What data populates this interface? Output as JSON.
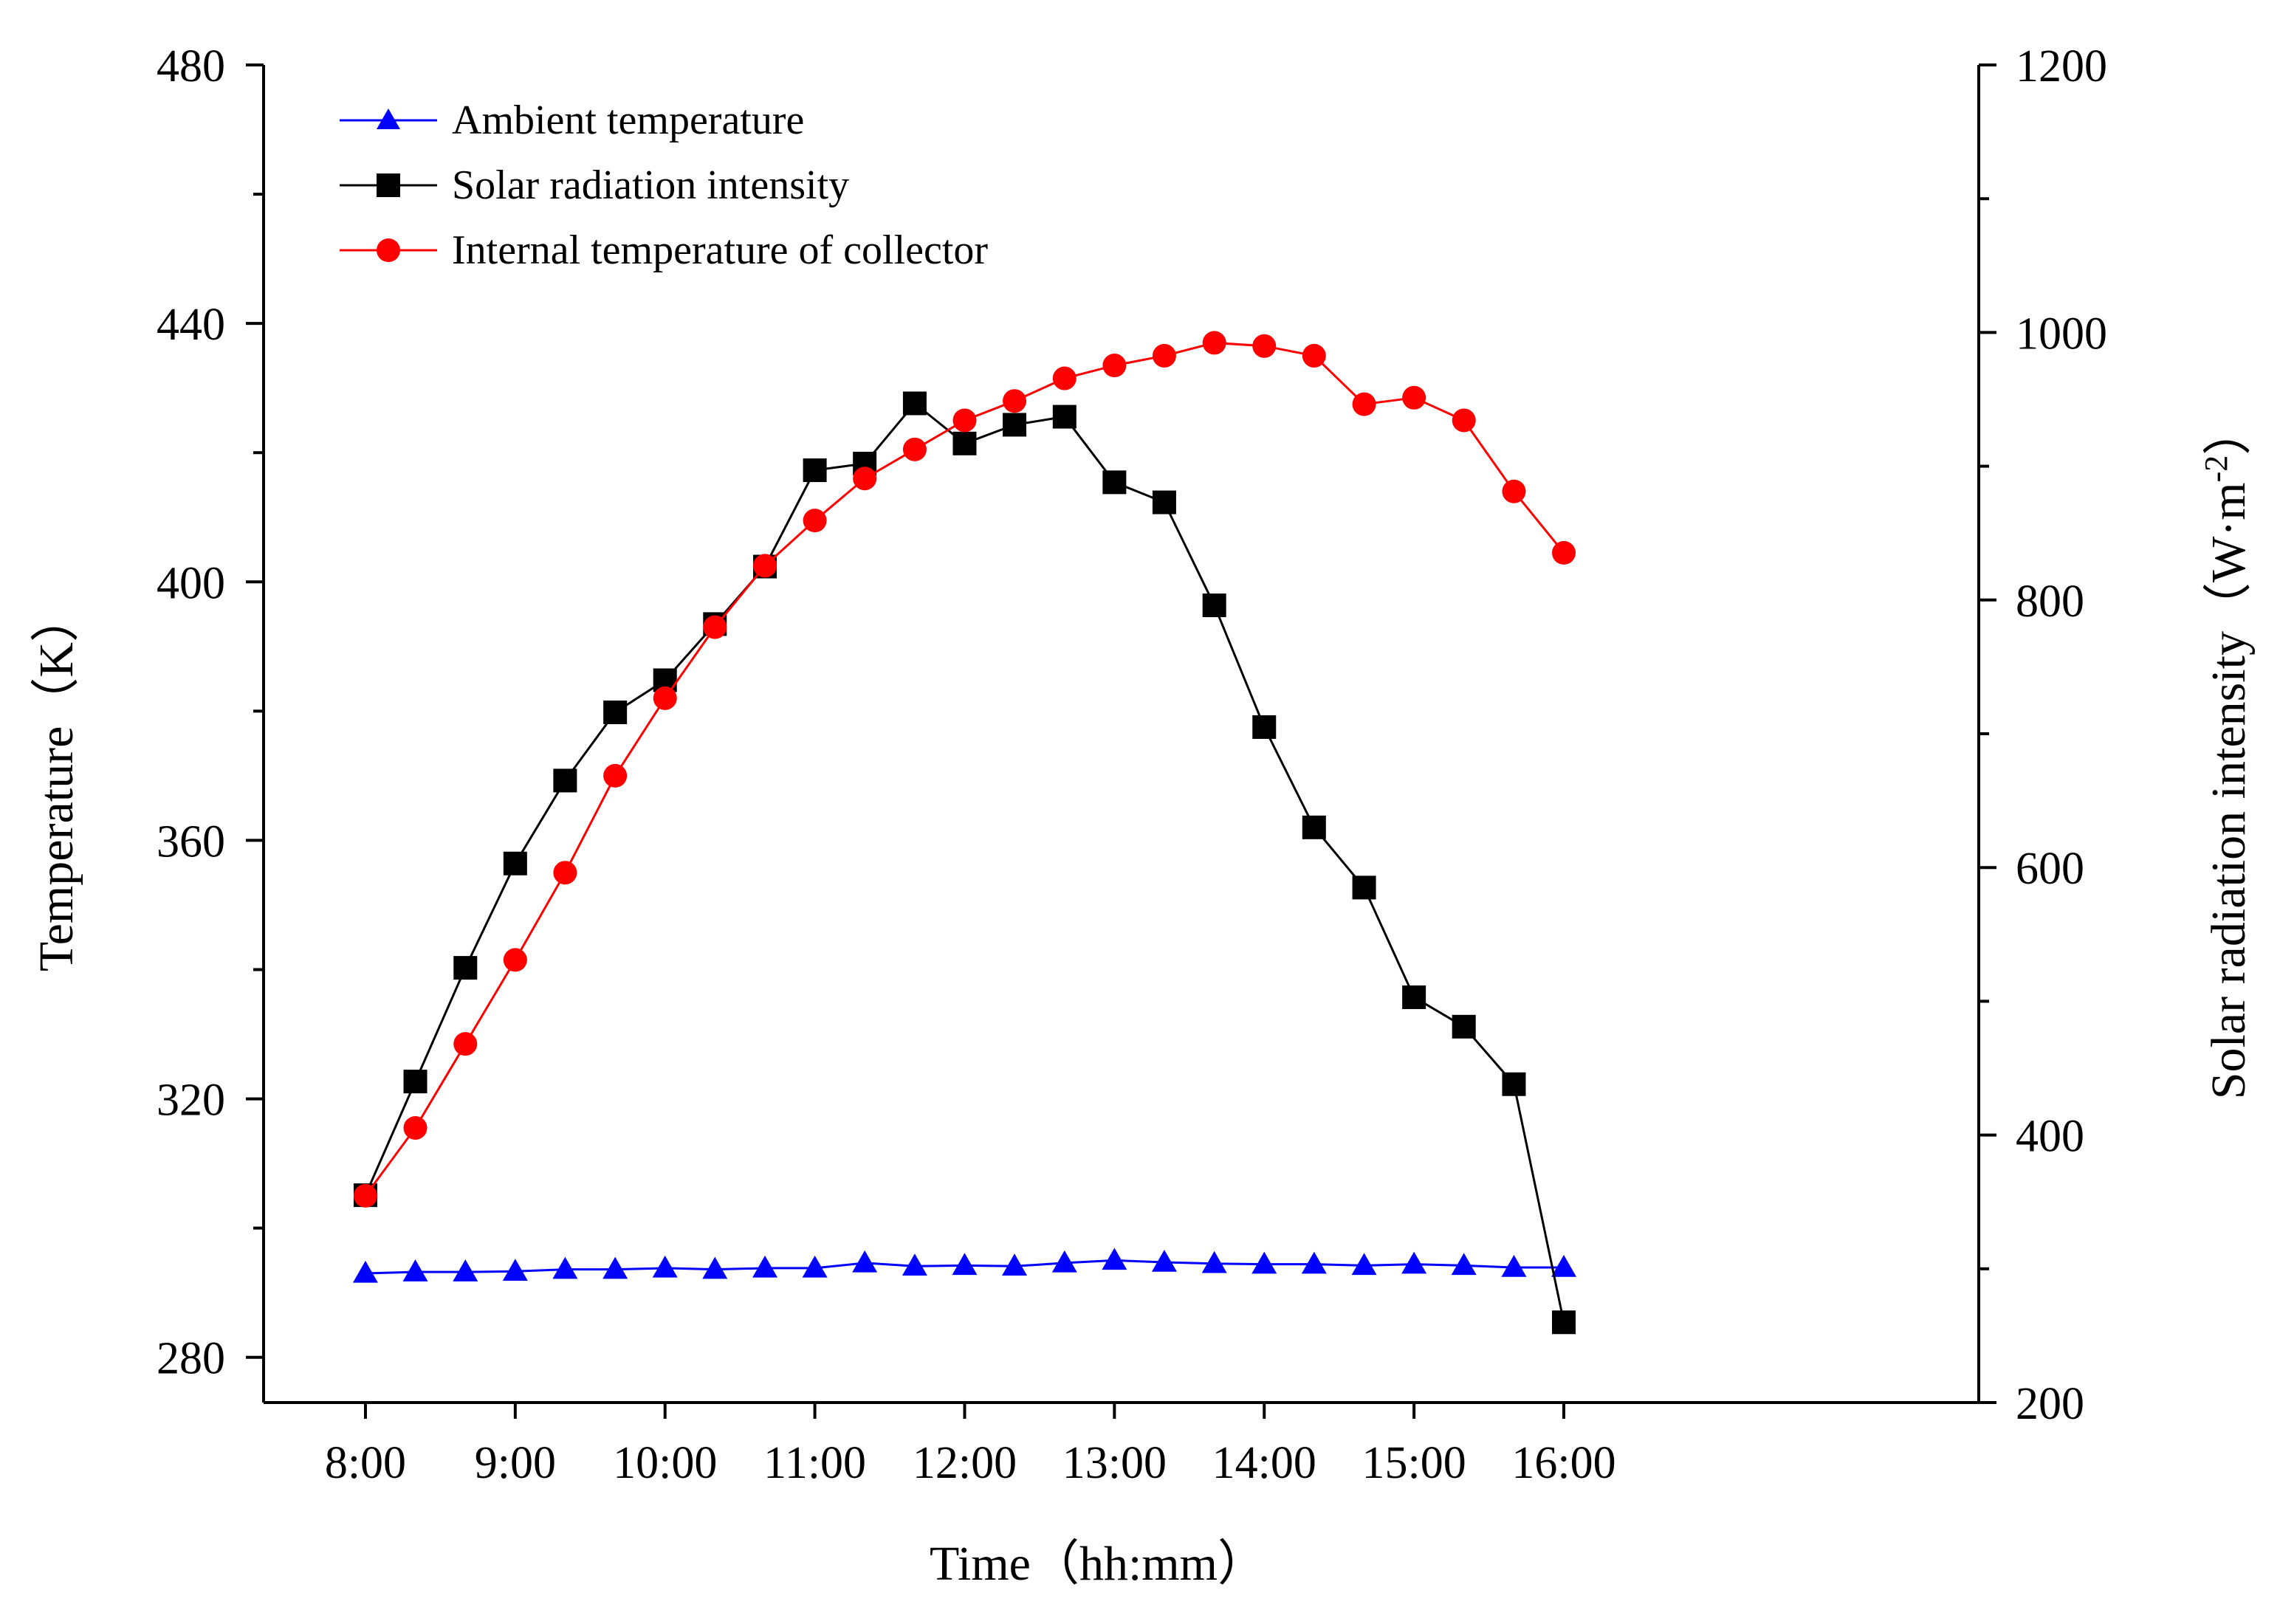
{
  "chart_data": {
    "type": "line",
    "title": "",
    "xlabel": "Time（hh:mm）",
    "ylabel_left": "Temperature（K）",
    "ylabel_right": "Solar radiation intensity（W·m",
    "ylabel_right_exponent": "-2",
    "ylabel_right_close": "）",
    "x_hours": [
      8,
      8.333,
      8.667,
      9,
      9.333,
      9.667,
      10,
      10.333,
      10.667,
      11,
      11.333,
      11.667,
      12,
      12.333,
      12.667,
      13,
      13.333,
      13.667,
      14,
      14.333,
      14.667,
      15,
      15.333,
      15.667,
      16
    ],
    "x_tick_labels": [
      "8:00",
      "9:00",
      "10:00",
      "11:00",
      "12:00",
      "13:00",
      "14:00",
      "15:00",
      "16:00"
    ],
    "x_tick_values": [
      8,
      9,
      10,
      11,
      12,
      13,
      14,
      15,
      16
    ],
    "xlim": [
      7.32,
      18.77
    ],
    "ylim_left": [
      273,
      480
    ],
    "yticks_left": [
      280,
      320,
      360,
      400,
      440,
      480
    ],
    "ylim_right": [
      200,
      1200
    ],
    "yticks_right": [
      200,
      400,
      600,
      800,
      1000,
      1200
    ],
    "legend_position": "top-left",
    "series": [
      {
        "name": "Ambient temperature",
        "axis": "left",
        "color": "#0000ff",
        "marker": "triangle",
        "values": [
          293,
          293.2,
          293.2,
          293.3,
          293.6,
          293.6,
          293.8,
          293.6,
          293.8,
          293.8,
          294.6,
          294.1,
          294.2,
          294.1,
          294.6,
          295,
          294.7,
          294.5,
          294.4,
          294.4,
          294.2,
          294.4,
          294.2,
          293.9,
          293.9
        ]
      },
      {
        "name": "Solar radiation intensity",
        "axis": "right",
        "color": "#000000",
        "marker": "square",
        "values": [
          355,
          440,
          525,
          603,
          665,
          716,
          740,
          782,
          825,
          897,
          902,
          947,
          917,
          931,
          937,
          888,
          873,
          796,
          705,
          630,
          585,
          503,
          481,
          438,
          260
        ]
      },
      {
        "name": "Internal temperature of collector",
        "axis": "left",
        "color": "#ff0000",
        "marker": "circle",
        "values": [
          305,
          315.5,
          328.5,
          341.5,
          355,
          370,
          382,
          393,
          402.5,
          409.5,
          416,
          420.5,
          425,
          428,
          431.5,
          433.5,
          435,
          437,
          436.5,
          435,
          427.5,
          428.5,
          425,
          414,
          404.5
        ]
      }
    ]
  }
}
